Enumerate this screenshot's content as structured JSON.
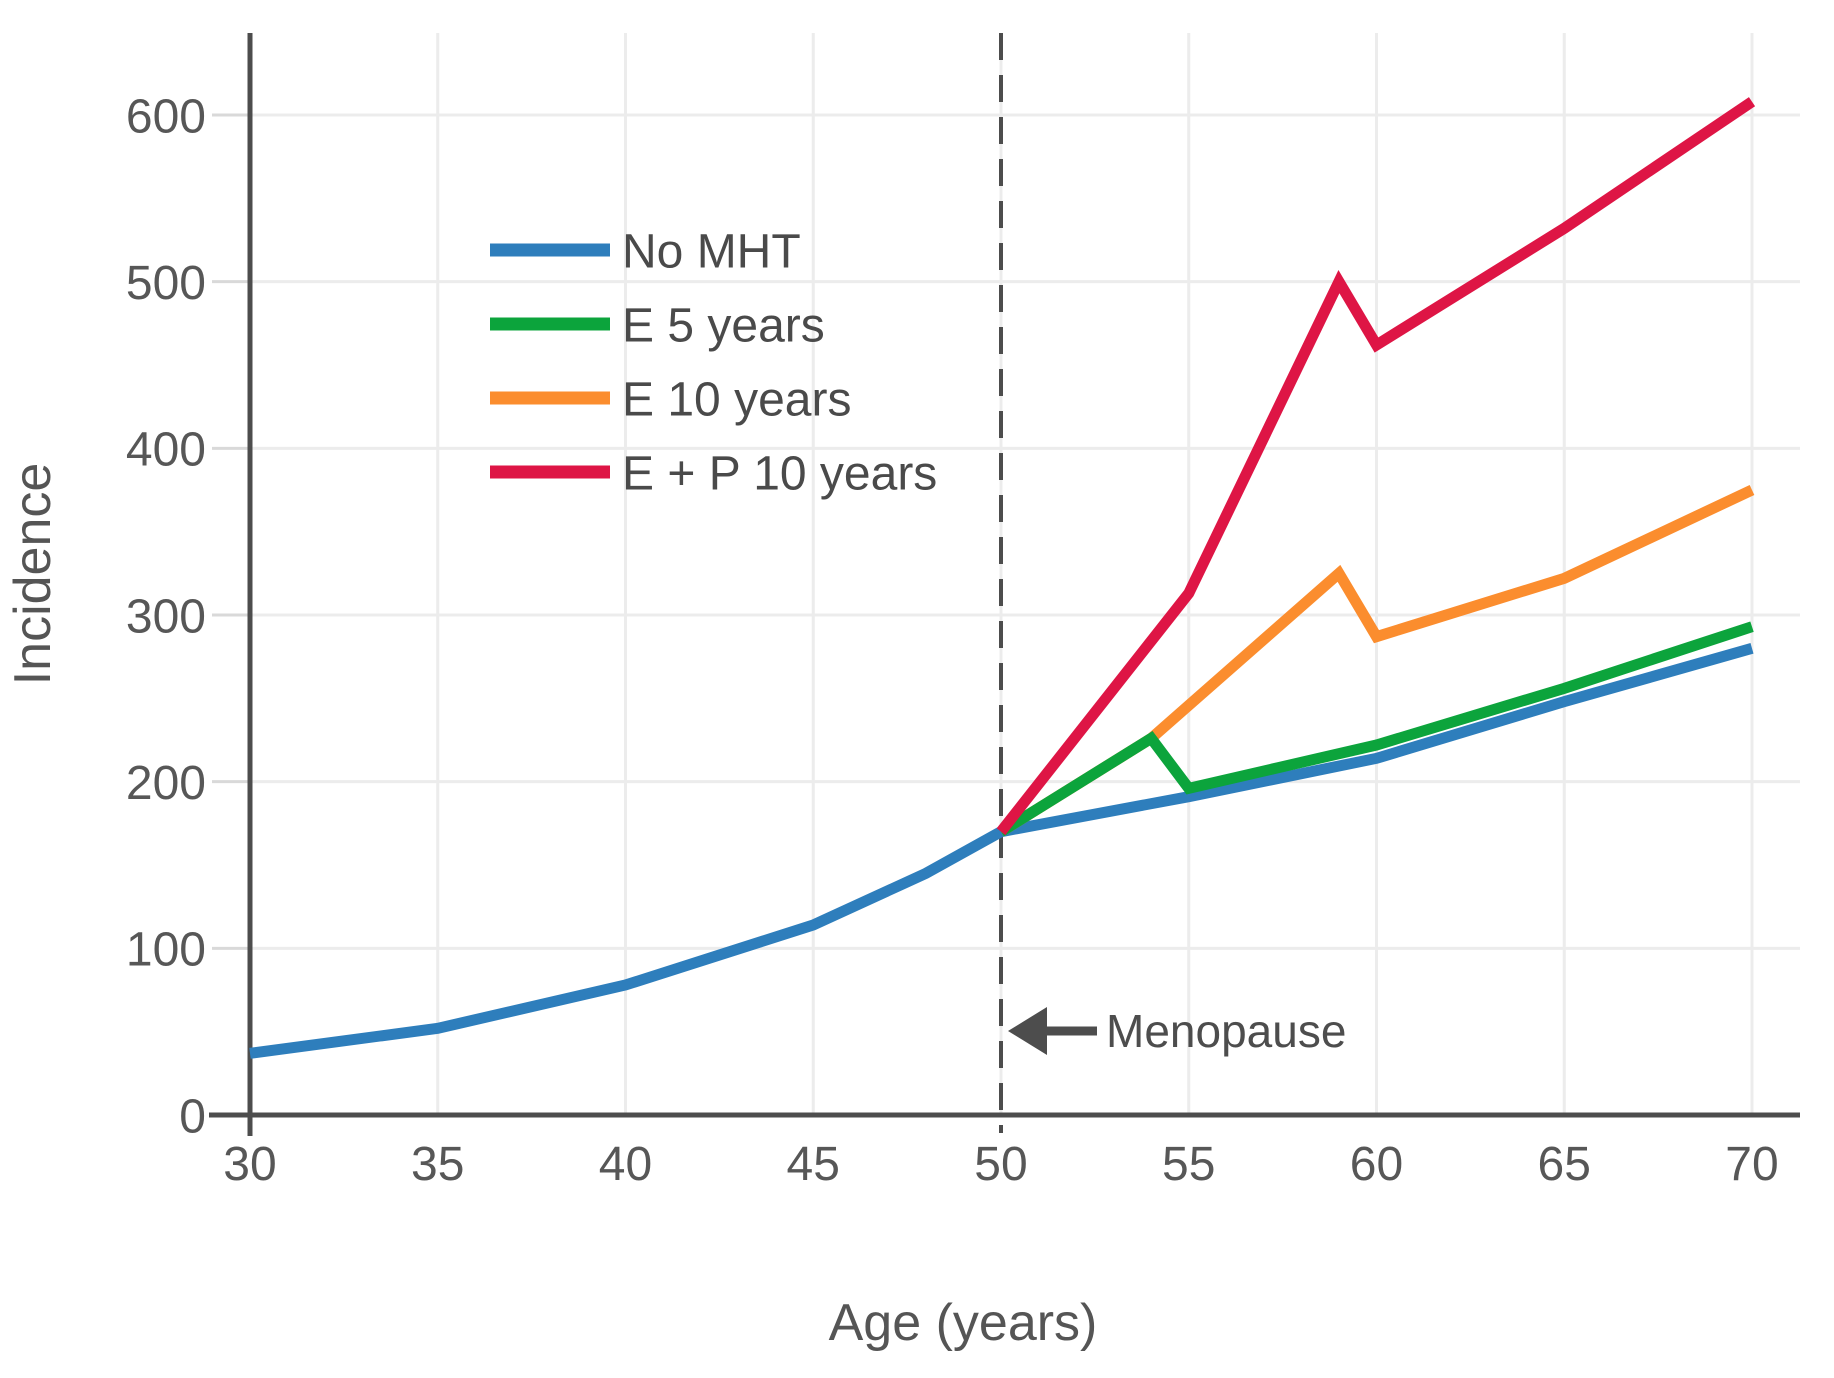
{
  "chart_data": {
    "type": "line",
    "title": "",
    "xlabel": "Age (years)",
    "ylabel": "Incidence",
    "xlim": [
      30,
      70
    ],
    "ylim": [
      0,
      650
    ],
    "x_ticks": [
      30,
      35,
      40,
      45,
      50,
      55,
      60,
      65,
      70
    ],
    "y_ticks": [
      0,
      100,
      200,
      300,
      400,
      500,
      600
    ],
    "grid": true,
    "legend_position": "upper-left-inside",
    "series": [
      {
        "name": "No MHT",
        "color": "#2E7EBC",
        "x": [
          30,
          35,
          40,
          45,
          48,
          50,
          55,
          60,
          65,
          70
        ],
        "y": [
          37,
          52,
          78,
          114,
          145,
          170,
          191,
          214,
          248,
          280
        ]
      },
      {
        "name": "E 5 years",
        "color": "#0CA43C",
        "x": [
          50,
          54,
          55,
          60,
          65,
          70
        ],
        "y": [
          170,
          226,
          196,
          222,
          256,
          293
        ]
      },
      {
        "name": "E 10 years",
        "color": "#FB8D2E",
        "x": [
          50,
          54,
          59,
          60,
          65,
          70
        ],
        "y": [
          170,
          226,
          325,
          287,
          322,
          375
        ]
      },
      {
        "name": "E + P 10 years",
        "color": "#DE1545",
        "x": [
          50,
          55,
          59,
          60,
          65,
          70
        ],
        "y": [
          170,
          313,
          500,
          462,
          532,
          608
        ]
      }
    ],
    "menopause_line": {
      "x": 50,
      "style": "dashed",
      "color": "#4D4D4D"
    },
    "annotation": {
      "text": "Menopause",
      "x": 50,
      "y": 50,
      "arrow": "left-arrow"
    },
    "colors": {
      "axis": "#4D4D4D",
      "tick_text": "#575757",
      "grid": "#ECECEC",
      "y_tick_mark": "#D9D9D9",
      "background": "#FFFFFF"
    }
  }
}
